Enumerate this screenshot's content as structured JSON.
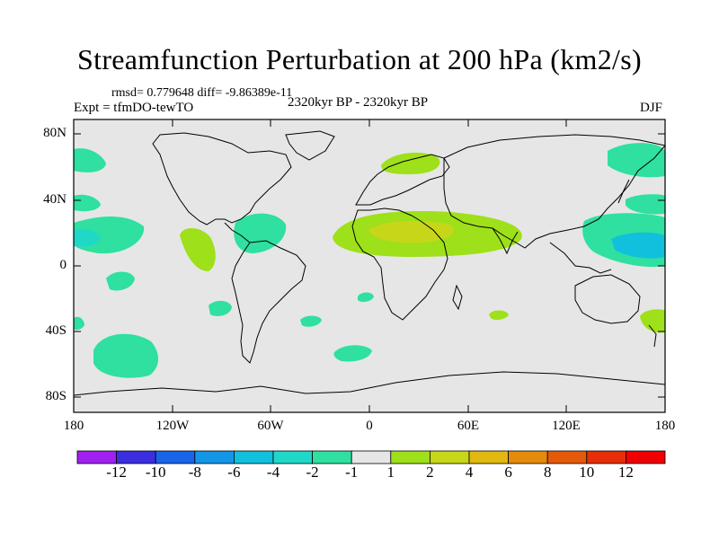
{
  "title": "Streamfunction Perturbation at 200 hPa (km2/s)",
  "stats": "rmsd= 0.779648 diff= -9.86389e-11",
  "experiment": "Expt = tfmDO-tewTO",
  "period": "2320kyr BP - 2320kyr BP",
  "season": "DJF",
  "y_ticks": [
    "80N",
    "40N",
    "0",
    "40S",
    "80S"
  ],
  "x_ticks": [
    "180",
    "120W",
    "60W",
    "0",
    "60E",
    "120E",
    "180"
  ],
  "legend": {
    "labels": [
      "-12",
      "-10",
      "-8",
      "-6",
      "-4",
      "-2",
      "-1",
      "1",
      "2",
      "4",
      "6",
      "8",
      "10",
      "12"
    ],
    "colors": [
      "#a020f0",
      "#3a2ee0",
      "#1a64e8",
      "#1496e6",
      "#10c0dc",
      "#20d8c8",
      "#2fe0a0",
      "#e6e6e6",
      "#9ee01a",
      "#c8d61a",
      "#e0b810",
      "#e48a0c",
      "#e45a0a",
      "#e62e08",
      "#f00000"
    ]
  },
  "colors": {
    "ocean": "#e6e6e6",
    "c_m1": "#2fe0a0",
    "c_m2": "#20d8c8",
    "c_m4": "#10c0dc",
    "c_p1": "#9ee01a",
    "c_p2": "#c8d61a"
  }
}
